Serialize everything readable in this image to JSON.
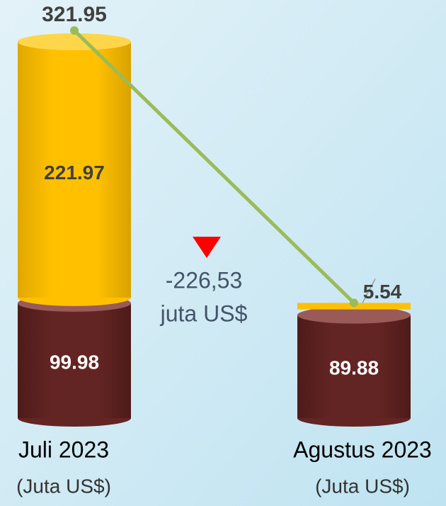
{
  "chart_data": {
    "type": "stacked_cylinder",
    "categories": [
      "Juli 2023",
      "Agustus 2023"
    ],
    "category_units": [
      "(Juta US$)",
      "(Juta US$)"
    ],
    "series": [
      {
        "name": null,
        "color": "#632523",
        "values": [
          99.98,
          89.88
        ]
      },
      {
        "name": null,
        "color": "#ffc000",
        "values": [
          221.97,
          5.54
        ]
      }
    ],
    "totals": {
      "color": "#9bbb59",
      "values": [
        321.95,
        95.42
      ],
      "value_labels": [
        "321.95",
        null
      ]
    },
    "annotation": {
      "color": "#ff0000",
      "lines": [
        "-226,53",
        "juta US$"
      ]
    }
  }
}
